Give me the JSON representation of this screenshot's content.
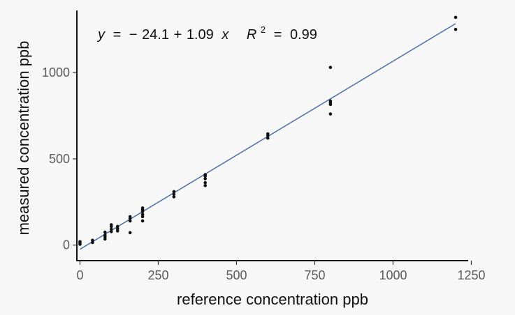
{
  "chart_data": {
    "type": "scatter",
    "xlabel": "reference concentration ppb",
    "ylabel": "measured concentration ppb",
    "xlim": [
      -10,
      1240
    ],
    "ylim": [
      -90,
      1360
    ],
    "x_ticks": [
      0,
      250,
      500,
      750,
      1000,
      1250
    ],
    "x_tick_labels": [
      "0",
      "250",
      "500",
      "750",
      "1000",
      "1250"
    ],
    "y_ticks": [
      0,
      500,
      1000
    ],
    "y_tick_labels": [
      "0",
      "500",
      "1000"
    ],
    "grid": false,
    "annotation": {
      "y_var": "y",
      "equals1": "=",
      "minus": "−",
      "intercept": "24.1",
      "plus": "+",
      "slope": "1.09",
      "x_var": "x",
      "r_var": "R",
      "r_exp": "2",
      "equals2": "=",
      "r2_value": "0.99"
    },
    "fit_line": {
      "intercept": -24.1,
      "slope": 1.09,
      "x_range": [
        0,
        1200
      ],
      "color": "#4f6fa5"
    },
    "point_color": "#111111",
    "points": [
      {
        "x": 0,
        "y": 5
      },
      {
        "x": 0,
        "y": 12
      },
      {
        "x": 0,
        "y": 20
      },
      {
        "x": 40,
        "y": 15
      },
      {
        "x": 40,
        "y": 28
      },
      {
        "x": 80,
        "y": 35
      },
      {
        "x": 80,
        "y": 48
      },
      {
        "x": 80,
        "y": 58
      },
      {
        "x": 80,
        "y": 75
      },
      {
        "x": 100,
        "y": 78
      },
      {
        "x": 100,
        "y": 92
      },
      {
        "x": 100,
        "y": 108
      },
      {
        "x": 100,
        "y": 118
      },
      {
        "x": 120,
        "y": 82
      },
      {
        "x": 120,
        "y": 95
      },
      {
        "x": 120,
        "y": 108
      },
      {
        "x": 160,
        "y": 72
      },
      {
        "x": 160,
        "y": 140
      },
      {
        "x": 160,
        "y": 155
      },
      {
        "x": 160,
        "y": 165
      },
      {
        "x": 200,
        "y": 140
      },
      {
        "x": 200,
        "y": 165
      },
      {
        "x": 200,
        "y": 178
      },
      {
        "x": 200,
        "y": 195
      },
      {
        "x": 200,
        "y": 205
      },
      {
        "x": 200,
        "y": 215
      },
      {
        "x": 300,
        "y": 280
      },
      {
        "x": 300,
        "y": 295
      },
      {
        "x": 300,
        "y": 310
      },
      {
        "x": 400,
        "y": 345
      },
      {
        "x": 400,
        "y": 362
      },
      {
        "x": 400,
        "y": 385
      },
      {
        "x": 400,
        "y": 400
      },
      {
        "x": 400,
        "y": 408
      },
      {
        "x": 600,
        "y": 620
      },
      {
        "x": 600,
        "y": 635
      },
      {
        "x": 600,
        "y": 645
      },
      {
        "x": 800,
        "y": 760
      },
      {
        "x": 800,
        "y": 815
      },
      {
        "x": 800,
        "y": 825
      },
      {
        "x": 800,
        "y": 835
      },
      {
        "x": 800,
        "y": 1030
      },
      {
        "x": 1200,
        "y": 1250
      },
      {
        "x": 1200,
        "y": 1320
      }
    ]
  }
}
